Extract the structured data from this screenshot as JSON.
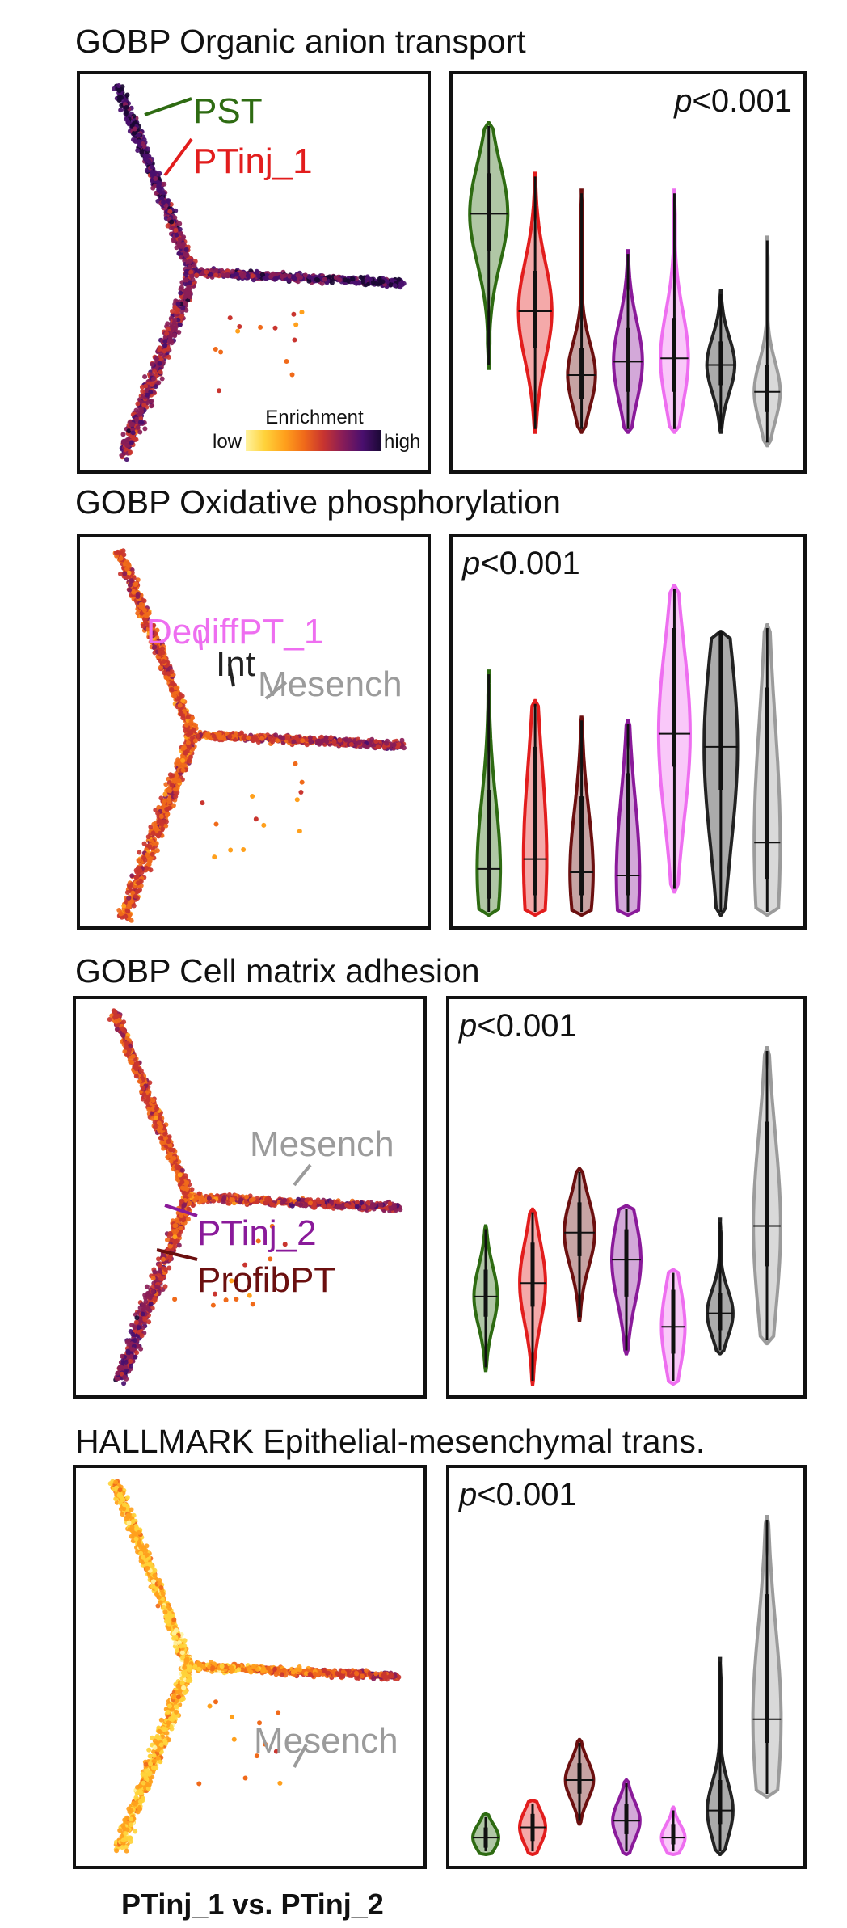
{
  "footer": "PTinj_1 vs. PTinj_2",
  "legend": {
    "title": "Enrichment",
    "low": "low",
    "high": "high"
  },
  "clusters": [
    {
      "name": "PST",
      "color": "#2e6b12"
    },
    {
      "name": "PTinj_1",
      "color": "#e21d1d"
    },
    {
      "name": "ProfibPT",
      "color": "#6b0f0f"
    },
    {
      "name": "PTinj_2",
      "color": "#8a1a9a"
    },
    {
      "name": "DediffPT_1",
      "color": "#ee6ef0"
    },
    {
      "name": "Int",
      "color": "#222222"
    },
    {
      "name": "Mesench",
      "color": "#9b9b9b"
    }
  ],
  "chart_data": [
    {
      "type": "violin",
      "title": "GOBP Organic anion transport",
      "pvalue": {
        "prefix": "p",
        "text": "<0.001"
      },
      "trajectory_labels": [
        {
          "text": "PST",
          "color": "#2e6b12"
        },
        {
          "text": "PTinj_1",
          "color": "#e21d1d"
        }
      ],
      "map_intensity": "high",
      "categories": [
        "PST",
        "PTinj_1",
        "ProfibPT",
        "PTinj_2",
        "DediffPT_1",
        "Int",
        "Mesench"
      ],
      "ylim": [
        0,
        1
      ],
      "violins": [
        {
          "min": 0.27,
          "q1": 0.62,
          "median": 0.73,
          "q3": 0.85,
          "max": 1.0,
          "width": 0.82
        },
        {
          "min": 0.08,
          "q1": 0.33,
          "median": 0.44,
          "q3": 0.56,
          "max": 0.85,
          "width": 0.72
        },
        {
          "min": 0.08,
          "q1": 0.18,
          "median": 0.25,
          "q3": 0.33,
          "max": 0.8,
          "width": 0.6
        },
        {
          "min": 0.08,
          "q1": 0.2,
          "median": 0.29,
          "q3": 0.39,
          "max": 0.62,
          "width": 0.62
        },
        {
          "min": 0.08,
          "q1": 0.2,
          "median": 0.3,
          "q3": 0.42,
          "max": 0.8,
          "width": 0.6
        },
        {
          "min": 0.08,
          "q1": 0.22,
          "median": 0.28,
          "q3": 0.35,
          "max": 0.5,
          "width": 0.6
        },
        {
          "min": 0.04,
          "q1": 0.14,
          "median": 0.2,
          "q3": 0.28,
          "max": 0.66,
          "width": 0.56
        }
      ]
    },
    {
      "type": "violin",
      "title": "GOBP Oxidative phosphorylation",
      "pvalue": {
        "prefix": "p",
        "text": "<0.001"
      },
      "trajectory_labels": [
        {
          "text": "DediffPT_1",
          "color": "#ee6ef0"
        },
        {
          "text": "Int",
          "color": "#222222"
        },
        {
          "text": "Mesench",
          "color": "#9b9b9b"
        }
      ],
      "map_intensity": "medium",
      "categories": [
        "PST",
        "PTinj_1",
        "ProfibPT",
        "PTinj_2",
        "DediffPT_1",
        "Int",
        "Mesench"
      ],
      "ylim": [
        0,
        1
      ],
      "violins": [
        {
          "min": 0.0,
          "q1": 0.05,
          "median": 0.14,
          "q3": 0.38,
          "max": 0.74,
          "width": 0.5
        },
        {
          "min": 0.0,
          "q1": 0.06,
          "median": 0.17,
          "q3": 0.51,
          "max": 0.65,
          "width": 0.5
        },
        {
          "min": 0.0,
          "q1": 0.06,
          "median": 0.13,
          "q3": 0.36,
          "max": 0.6,
          "width": 0.5
        },
        {
          "min": 0.0,
          "q1": 0.06,
          "median": 0.12,
          "q3": 0.43,
          "max": 0.59,
          "width": 0.5
        },
        {
          "min": 0.07,
          "q1": 0.45,
          "median": 0.55,
          "q3": 0.87,
          "max": 1.0,
          "width": 0.68
        },
        {
          "min": 0.0,
          "q1": 0.38,
          "median": 0.51,
          "q3": 0.86,
          "max": 0.86,
          "width": 0.72
        },
        {
          "min": 0.0,
          "q1": 0.11,
          "median": 0.22,
          "q3": 0.69,
          "max": 0.88,
          "width": 0.56
        }
      ]
    },
    {
      "type": "violin",
      "title": "GOBP Cell matrix adhesion",
      "pvalue": {
        "prefix": "p",
        "text": "<0.001"
      },
      "trajectory_labels": [
        {
          "text": "Mesench",
          "color": "#9b9b9b"
        },
        {
          "text": "PTinj_2",
          "color": "#8a1a9a"
        },
        {
          "text": "ProfibPT",
          "color": "#6b0f0f"
        }
      ],
      "map_intensity": "medium",
      "categories": [
        "PST",
        "PTinj_1",
        "ProfibPT",
        "PTinj_2",
        "DediffPT_1",
        "Int",
        "Mesench"
      ],
      "ylim": [
        0,
        1
      ],
      "violins": [
        {
          "min": 0.04,
          "q1": 0.2,
          "median": 0.26,
          "q3": 0.34,
          "max": 0.47,
          "width": 0.5
        },
        {
          "min": 0.0,
          "q1": 0.23,
          "median": 0.3,
          "q3": 0.42,
          "max": 0.52,
          "width": 0.55
        },
        {
          "min": 0.19,
          "q1": 0.38,
          "median": 0.45,
          "q3": 0.54,
          "max": 0.64,
          "width": 0.65
        },
        {
          "min": 0.09,
          "q1": 0.26,
          "median": 0.37,
          "q3": 0.46,
          "max": 0.53,
          "width": 0.62
        },
        {
          "min": 0.0,
          "q1": 0.09,
          "median": 0.17,
          "q3": 0.28,
          "max": 0.34,
          "width": 0.5
        },
        {
          "min": 0.09,
          "q1": 0.16,
          "median": 0.21,
          "q3": 0.27,
          "max": 0.49,
          "width": 0.55
        },
        {
          "min": 0.12,
          "q1": 0.35,
          "median": 0.47,
          "q3": 0.78,
          "max": 1.0,
          "width": 0.58
        }
      ]
    },
    {
      "type": "violin",
      "title": "HALLMARK Epithelial-mesenchymal trans.",
      "pvalue": {
        "prefix": "p",
        "text": "<0.001"
      },
      "trajectory_labels": [
        {
          "text": "Mesench",
          "color": "#9b9b9b"
        }
      ],
      "map_intensity": "low",
      "categories": [
        "PST",
        "PTinj_1",
        "ProfibPT",
        "PTinj_2",
        "DediffPT_1",
        "Int",
        "Mesench"
      ],
      "ylim": [
        0,
        1
      ],
      "violins": [
        {
          "min": 0.0,
          "q1": 0.02,
          "median": 0.05,
          "q3": 0.08,
          "max": 0.12,
          "width": 0.55
        },
        {
          "min": 0.0,
          "q1": 0.04,
          "median": 0.08,
          "q3": 0.12,
          "max": 0.16,
          "width": 0.55
        },
        {
          "min": 0.09,
          "q1": 0.18,
          "median": 0.22,
          "q3": 0.27,
          "max": 0.34,
          "width": 0.6
        },
        {
          "min": 0.0,
          "q1": 0.06,
          "median": 0.1,
          "q3": 0.15,
          "max": 0.22,
          "width": 0.58
        },
        {
          "min": 0.0,
          "q1": 0.03,
          "median": 0.05,
          "q3": 0.09,
          "max": 0.14,
          "width": 0.5
        },
        {
          "min": 0.0,
          "q1": 0.09,
          "median": 0.13,
          "q3": 0.22,
          "max": 0.58,
          "width": 0.55
        },
        {
          "min": 0.17,
          "q1": 0.33,
          "median": 0.4,
          "q3": 0.77,
          "max": 1.0,
          "width": 0.6
        }
      ]
    }
  ]
}
